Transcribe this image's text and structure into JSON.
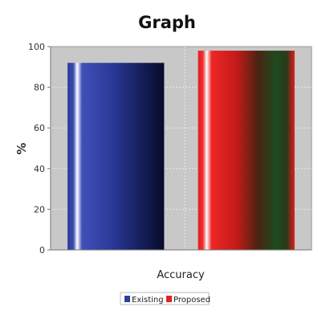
{
  "chart_data": {
    "type": "bar",
    "title": "Graph",
    "xlabel": "Accuracy",
    "ylabel": "%",
    "ylim": [
      0,
      100
    ],
    "yticks": [
      "0",
      "20",
      "40",
      "60",
      "80",
      "100"
    ],
    "categories": [
      "Accuracy"
    ],
    "series": [
      {
        "name": "Existing",
        "values": [
          92
        ],
        "color": "#2f3f9f"
      },
      {
        "name": "Proposed",
        "values": [
          98
        ],
        "color": "#e52222"
      }
    ],
    "grid": true,
    "legend": "bottom"
  }
}
